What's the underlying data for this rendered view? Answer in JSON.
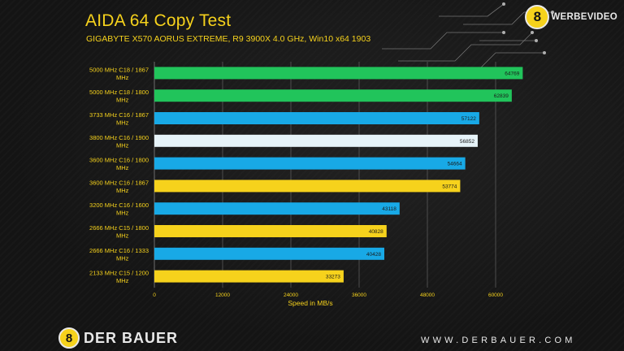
{
  "header": {
    "title": "AIDA 64 Copy Test",
    "subtitle": "GIGABYTE X570 AORUS EXTREME, R9 3900X 4.0 GHz, Win10 x64 1903"
  },
  "watermark": {
    "badge": "8",
    "text": "WERBEVIDEO"
  },
  "footer": {
    "badge": "8",
    "brand": "DER BAUER",
    "url": "WWW.DERBAUER.COM"
  },
  "colors": {
    "green": "#21c45b",
    "blue": "#18a9e6",
    "white": "#e6f3f8",
    "yellow": "#f6d21c",
    "axis_text": "#f6d21c",
    "grid": "#5a5a5a"
  },
  "chart_data": {
    "type": "bar",
    "orientation": "horizontal",
    "title": "AIDA 64 Copy Test",
    "subtitle": "GIGABYTE X570 AORUS EXTREME, R9 3900X 4.0 GHz, Win10 x64 1903",
    "xlabel": "Speed in MB/s",
    "ylabel": "",
    "xlim": [
      0,
      72000
    ],
    "xticks": [
      0,
      12000,
      24000,
      36000,
      48000,
      60000
    ],
    "grid": true,
    "legend": "none",
    "categories": [
      "5000 MHz C18 / 1867 MHz",
      "5000 MHz C18 / 1800 MHz",
      "3733 MHz C16 / 1867 MHz",
      "3800 MHz C16 / 1900 MHz",
      "3600 MHz C16 / 1800 MHz",
      "3600 MHz C16 / 1867 MHz",
      "3200 MHz C16 / 1600 MHz",
      "2666 MHz C15 / 1800 MHz",
      "2666 MHz C16 / 1333 MHz",
      "2133 MHz C15 / 1200 MHz"
    ],
    "values": [
      64769,
      62839,
      57122,
      56852,
      54664,
      53774,
      43118,
      40828,
      40428,
      33273
    ],
    "bar_colors": [
      "green",
      "green",
      "blue",
      "white",
      "blue",
      "yellow",
      "blue",
      "yellow",
      "blue",
      "yellow"
    ]
  }
}
